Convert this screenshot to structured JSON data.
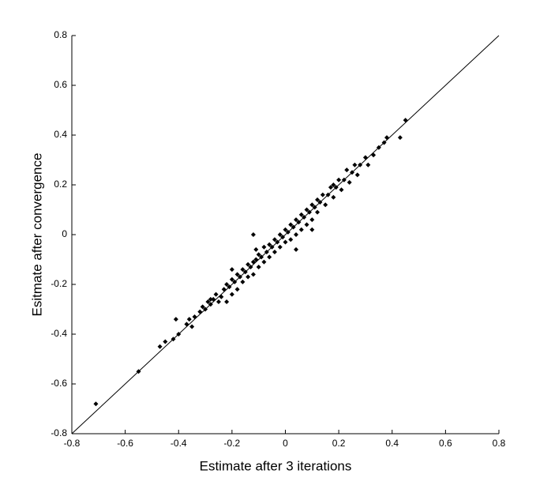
{
  "chart_data": {
    "type": "scatter",
    "xlabel": "Estimate after 3 iterations",
    "ylabel": "Esitmate after convergence",
    "xlim": [
      -0.8,
      0.8
    ],
    "ylim": [
      -0.8,
      0.8
    ],
    "xticks": [
      -0.8,
      -0.6,
      -0.4,
      -0.2,
      0,
      0.2,
      0.4,
      0.6,
      0.8
    ],
    "yticks": [
      -0.8,
      -0.6,
      -0.4,
      -0.2,
      0,
      0.2,
      0.4,
      0.6,
      0.8
    ],
    "color": "#000000",
    "x": [
      -0.71,
      -0.55,
      -0.47,
      -0.45,
      -0.42,
      -0.41,
      -0.4,
      -0.37,
      -0.36,
      -0.35,
      -0.34,
      -0.32,
      -0.31,
      -0.3,
      -0.29,
      -0.28,
      -0.27,
      -0.26,
      -0.25,
      -0.24,
      -0.23,
      -0.22,
      -0.22,
      -0.21,
      -0.2,
      -0.2,
      -0.19,
      -0.18,
      -0.18,
      -0.17,
      -0.16,
      -0.16,
      -0.15,
      -0.14,
      -0.14,
      -0.13,
      -0.12,
      -0.12,
      -0.11,
      -0.1,
      -0.1,
      -0.09,
      -0.08,
      -0.08,
      -0.07,
      -0.06,
      -0.06,
      -0.05,
      -0.04,
      -0.04,
      -0.03,
      -0.02,
      -0.02,
      -0.01,
      0.0,
      0.0,
      0.01,
      0.02,
      0.02,
      0.03,
      0.04,
      0.04,
      0.05,
      0.06,
      0.06,
      0.07,
      0.08,
      0.08,
      0.09,
      0.1,
      0.1,
      0.11,
      0.12,
      0.12,
      0.13,
      0.14,
      0.15,
      0.16,
      0.17,
      0.18,
      0.19,
      0.2,
      0.21,
      0.22,
      0.23,
      0.24,
      0.25,
      0.26,
      0.27,
      0.28,
      0.3,
      0.31,
      0.33,
      0.35,
      0.37,
      0.38,
      0.43,
      0.45,
      -0.11,
      0.1,
      -0.12,
      0.04,
      -0.2,
      0.18,
      -0.28
    ],
    "y": [
      -0.68,
      -0.55,
      -0.45,
      -0.43,
      -0.42,
      -0.34,
      -0.4,
      -0.36,
      -0.34,
      -0.37,
      -0.33,
      -0.31,
      -0.29,
      -0.3,
      -0.27,
      -0.28,
      -0.26,
      -0.24,
      -0.27,
      -0.25,
      -0.22,
      -0.2,
      -0.27,
      -0.21,
      -0.18,
      -0.24,
      -0.19,
      -0.16,
      -0.22,
      -0.17,
      -0.14,
      -0.19,
      -0.15,
      -0.12,
      -0.17,
      -0.13,
      -0.11,
      -0.16,
      -0.1,
      -0.08,
      -0.13,
      -0.09,
      -0.05,
      -0.11,
      -0.07,
      -0.04,
      -0.09,
      -0.05,
      -0.02,
      -0.07,
      -0.03,
      0.0,
      -0.05,
      -0.01,
      0.02,
      -0.03,
      0.01,
      0.04,
      -0.02,
      0.03,
      0.06,
      0.0,
      0.05,
      0.08,
      0.02,
      0.07,
      0.1,
      0.04,
      0.09,
      0.12,
      0.06,
      0.11,
      0.14,
      0.09,
      0.13,
      0.16,
      0.12,
      0.16,
      0.19,
      0.15,
      0.19,
      0.22,
      0.18,
      0.22,
      0.26,
      0.21,
      0.25,
      0.28,
      0.24,
      0.28,
      0.31,
      0.28,
      0.32,
      0.35,
      0.37,
      0.39,
      0.39,
      0.46,
      -0.06,
      0.02,
      0.0,
      -0.06,
      -0.14,
      0.2,
      -0.26
    ]
  }
}
